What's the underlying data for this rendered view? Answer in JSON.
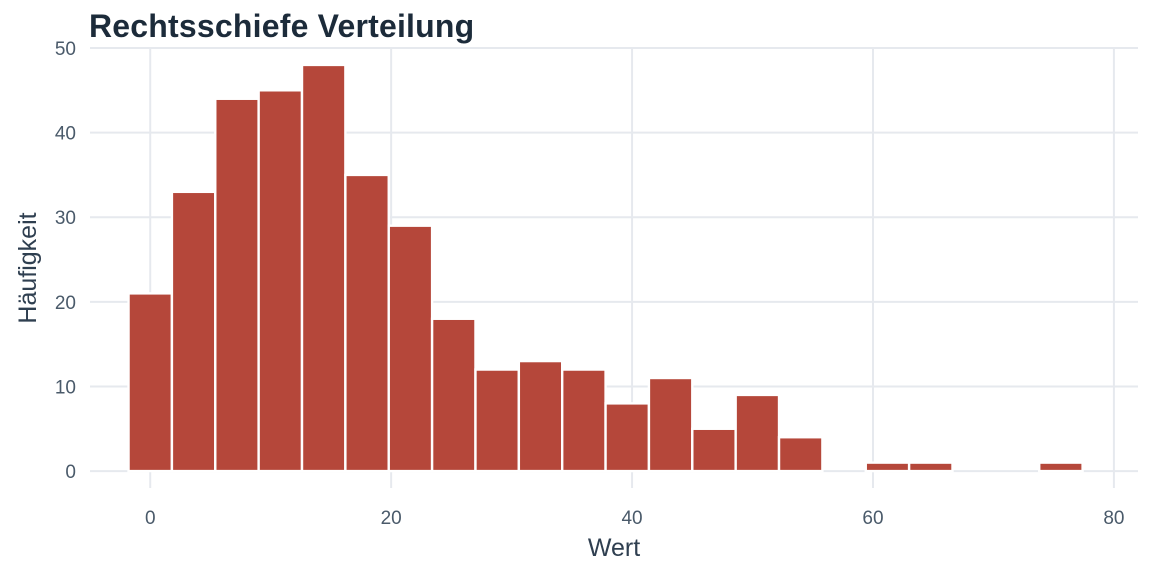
{
  "chart_data": {
    "type": "bar",
    "title": "Rechtsschiefe Verteilung",
    "xlabel": "Wert",
    "ylabel": "Häufigkeit",
    "bins": [
      {
        "x0": -1.8,
        "x1": 1.8,
        "count": 21
      },
      {
        "x0": 1.8,
        "x1": 5.4,
        "count": 33
      },
      {
        "x0": 5.4,
        "x1": 9.0,
        "count": 44
      },
      {
        "x0": 9.0,
        "x1": 12.6,
        "count": 45
      },
      {
        "x0": 12.6,
        "x1": 16.2,
        "count": 48
      },
      {
        "x0": 16.2,
        "x1": 19.8,
        "count": 35
      },
      {
        "x0": 19.8,
        "x1": 23.4,
        "count": 29
      },
      {
        "x0": 23.4,
        "x1": 27.0,
        "count": 18
      },
      {
        "x0": 27.0,
        "x1": 30.6,
        "count": 12
      },
      {
        "x0": 30.6,
        "x1": 34.2,
        "count": 13
      },
      {
        "x0": 34.2,
        "x1": 37.8,
        "count": 12
      },
      {
        "x0": 37.8,
        "x1": 41.4,
        "count": 8
      },
      {
        "x0": 41.4,
        "x1": 45.0,
        "count": 11
      },
      {
        "x0": 45.0,
        "x1": 48.6,
        "count": 5
      },
      {
        "x0": 48.6,
        "x1": 52.2,
        "count": 9
      },
      {
        "x0": 52.2,
        "x1": 55.8,
        "count": 4
      },
      {
        "x0": 55.8,
        "x1": 59.4,
        "count": 0
      },
      {
        "x0": 59.4,
        "x1": 63.0,
        "count": 1
      },
      {
        "x0": 63.0,
        "x1": 66.6,
        "count": 1
      },
      {
        "x0": 66.6,
        "x1": 70.2,
        "count": 0
      },
      {
        "x0": 70.2,
        "x1": 73.8,
        "count": 0
      },
      {
        "x0": 73.8,
        "x1": 77.4,
        "count": 1
      }
    ],
    "xlim": [
      -5,
      82
    ],
    "ylim": [
      -2,
      50
    ],
    "xticks": [
      0,
      20,
      40,
      60,
      80
    ],
    "yticks": [
      0,
      10,
      20,
      30,
      40,
      50
    ],
    "grid": true,
    "legend": "none",
    "colors": {
      "bar": "#b5473a",
      "bar_edge": "#ffffff",
      "grid": "#e6e9ee",
      "title": "#1c2b3a",
      "tick_text": "#4a5a6a",
      "axis_title": "#2f3f50"
    }
  }
}
